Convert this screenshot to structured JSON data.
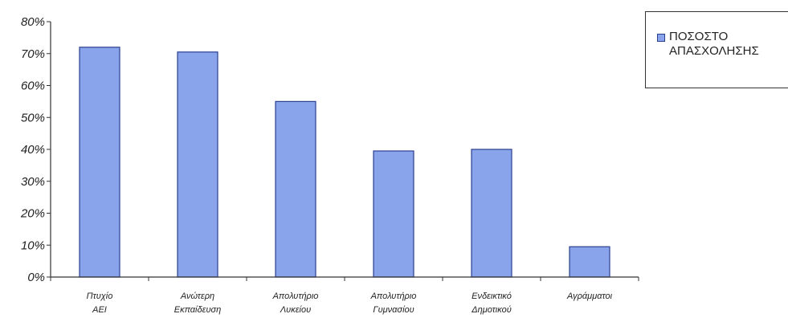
{
  "chart_data": {
    "type": "bar",
    "categories": [
      [
        "Πτυχίο",
        "ΑΕΙ"
      ],
      [
        "Ανώτερη",
        "Εκπαίδευση"
      ],
      [
        "Απολυτήριο",
        "Λυκείου"
      ],
      [
        "Απολυτήριο",
        "Γυμνασίου"
      ],
      [
        "Ενδεικτικό",
        "Δημοτικού"
      ],
      [
        "Αγράμματοι"
      ]
    ],
    "series": [
      {
        "name": "ΠΟΣΟΣΤΟ ΑΠΑΣΧΟΛΗΣΗΣ",
        "values": [
          72,
          70.5,
          55,
          39.5,
          40,
          9.5
        ]
      }
    ],
    "ylim": [
      0,
      80
    ],
    "ytick_step": 10,
    "ytick_format": "%",
    "grid": false,
    "legend_position": "right",
    "colors": {
      "bar_fill": "#8aa4ec",
      "bar_stroke": "#2a3f8f",
      "axis": "#333333"
    }
  },
  "legend": {
    "line1": "ΠΟΣΟΣΤΟ",
    "line2": "ΑΠΑΣΧΟΛΗΣΗΣ"
  }
}
